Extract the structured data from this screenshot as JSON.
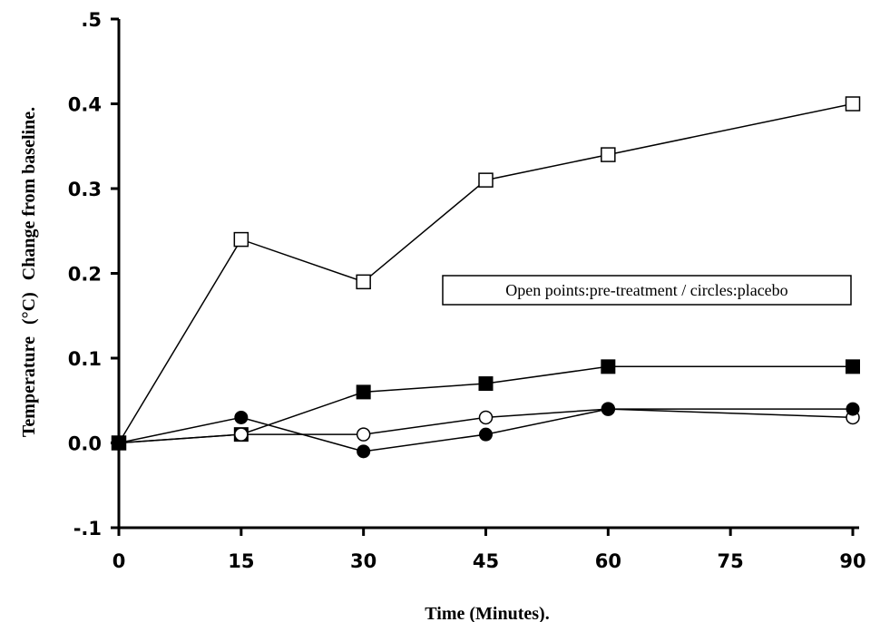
{
  "chart_data": {
    "type": "line",
    "xlabel": "Time (Minutes).",
    "ylabel_prefix": "Temperature",
    "ylabel_unit": "(°C)",
    "ylabel_suffix": "Change from baseline.",
    "legend_note": "Open points:pre-treatment / circles:placebo",
    "legend_placement": "middle-right",
    "grid": false,
    "x_ticks": [
      0,
      15,
      30,
      45,
      60,
      75,
      90
    ],
    "x_tick_labels": [
      "0",
      "15",
      "30",
      "45",
      "60",
      "75",
      "90"
    ],
    "y_ticks": [
      -0.1,
      0.0,
      0.1,
      0.2,
      0.3,
      0.4,
      0.5
    ],
    "y_tick_labels": [
      "-.1",
      "0.0",
      "0.1",
      "0.2",
      "0.3",
      "0.4",
      ".5"
    ],
    "xlim": [
      0,
      90
    ],
    "ylim": [
      -0.1,
      0.5
    ],
    "series": [
      {
        "marker": "open-square",
        "x": [
          0,
          15,
          30,
          45,
          60,
          90
        ],
        "y": [
          0.0,
          0.24,
          0.19,
          0.31,
          0.34,
          0.4
        ]
      },
      {
        "marker": "filled-square",
        "x": [
          0,
          15,
          30,
          45,
          60,
          90
        ],
        "y": [
          0.0,
          0.01,
          0.06,
          0.07,
          0.09,
          0.09
        ]
      },
      {
        "marker": "open-circle",
        "x": [
          0,
          15,
          30,
          45,
          60,
          90
        ],
        "y": [
          0.0,
          0.01,
          0.01,
          0.03,
          0.04,
          0.03
        ]
      },
      {
        "marker": "filled-circle",
        "x": [
          0,
          15,
          30,
          45,
          60,
          90
        ],
        "y": [
          0.0,
          0.03,
          -0.01,
          0.01,
          0.04,
          0.04
        ]
      }
    ]
  }
}
